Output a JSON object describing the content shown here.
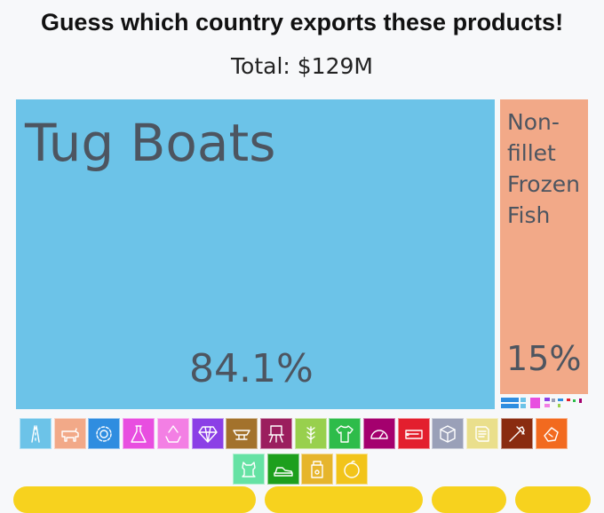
{
  "header": {
    "title": "Guess which country exports these products!",
    "total": "Total: $129M"
  },
  "chart_data": {
    "type": "treemap",
    "total": "$129M",
    "items": [
      {
        "label": "Tug Boats",
        "percent_label": "84.1%",
        "value": 84.1,
        "color": "#6cc3e8"
      },
      {
        "label": "Non-\nfillet\nFrozen\nFish",
        "percent_label": "15%",
        "value": 15.0,
        "color": "#f2a988"
      }
    ]
  },
  "categories": [
    {
      "name": "transportation-icon",
      "color": "#6cc3e8"
    },
    {
      "name": "animal-products-icon",
      "color": "#f2a988"
    },
    {
      "name": "machines-icon",
      "color": "#2f8de0"
    },
    {
      "name": "chemical-products-icon",
      "color": "#e84ee0"
    },
    {
      "name": "plastics-rubbers-icon",
      "color": "#f37fe4"
    },
    {
      "name": "precious-metals-icon",
      "color": "#8b3fe6"
    },
    {
      "name": "metals-icon",
      "color": "#a3722c"
    },
    {
      "name": "instruments-icon",
      "color": "#9b1e5e"
    },
    {
      "name": "vegetable-products-icon",
      "color": "#98d04d"
    },
    {
      "name": "textiles-icon",
      "color": "#2ebc4a"
    },
    {
      "name": "miscellaneous-icon",
      "color": "#a4006e"
    },
    {
      "name": "mineral-products-icon",
      "color": "#e31f2e"
    },
    {
      "name": "stone-glass-icon",
      "color": "#9aa0b8"
    },
    {
      "name": "paper-goods-icon",
      "color": "#eadf8c"
    },
    {
      "name": "weapons-icon",
      "color": "#8a2c10"
    },
    {
      "name": "arts-antiques-icon",
      "color": "#f26a1f"
    },
    {
      "name": "animal-hides-icon",
      "color": "#66e2a4"
    },
    {
      "name": "footwear-headwear-icon",
      "color": "#1d9f1d"
    },
    {
      "name": "foodstuffs-icon",
      "color": "#e6b52c"
    },
    {
      "name": "vegetable-fats-icon",
      "color": "#f2c41a"
    }
  ]
}
